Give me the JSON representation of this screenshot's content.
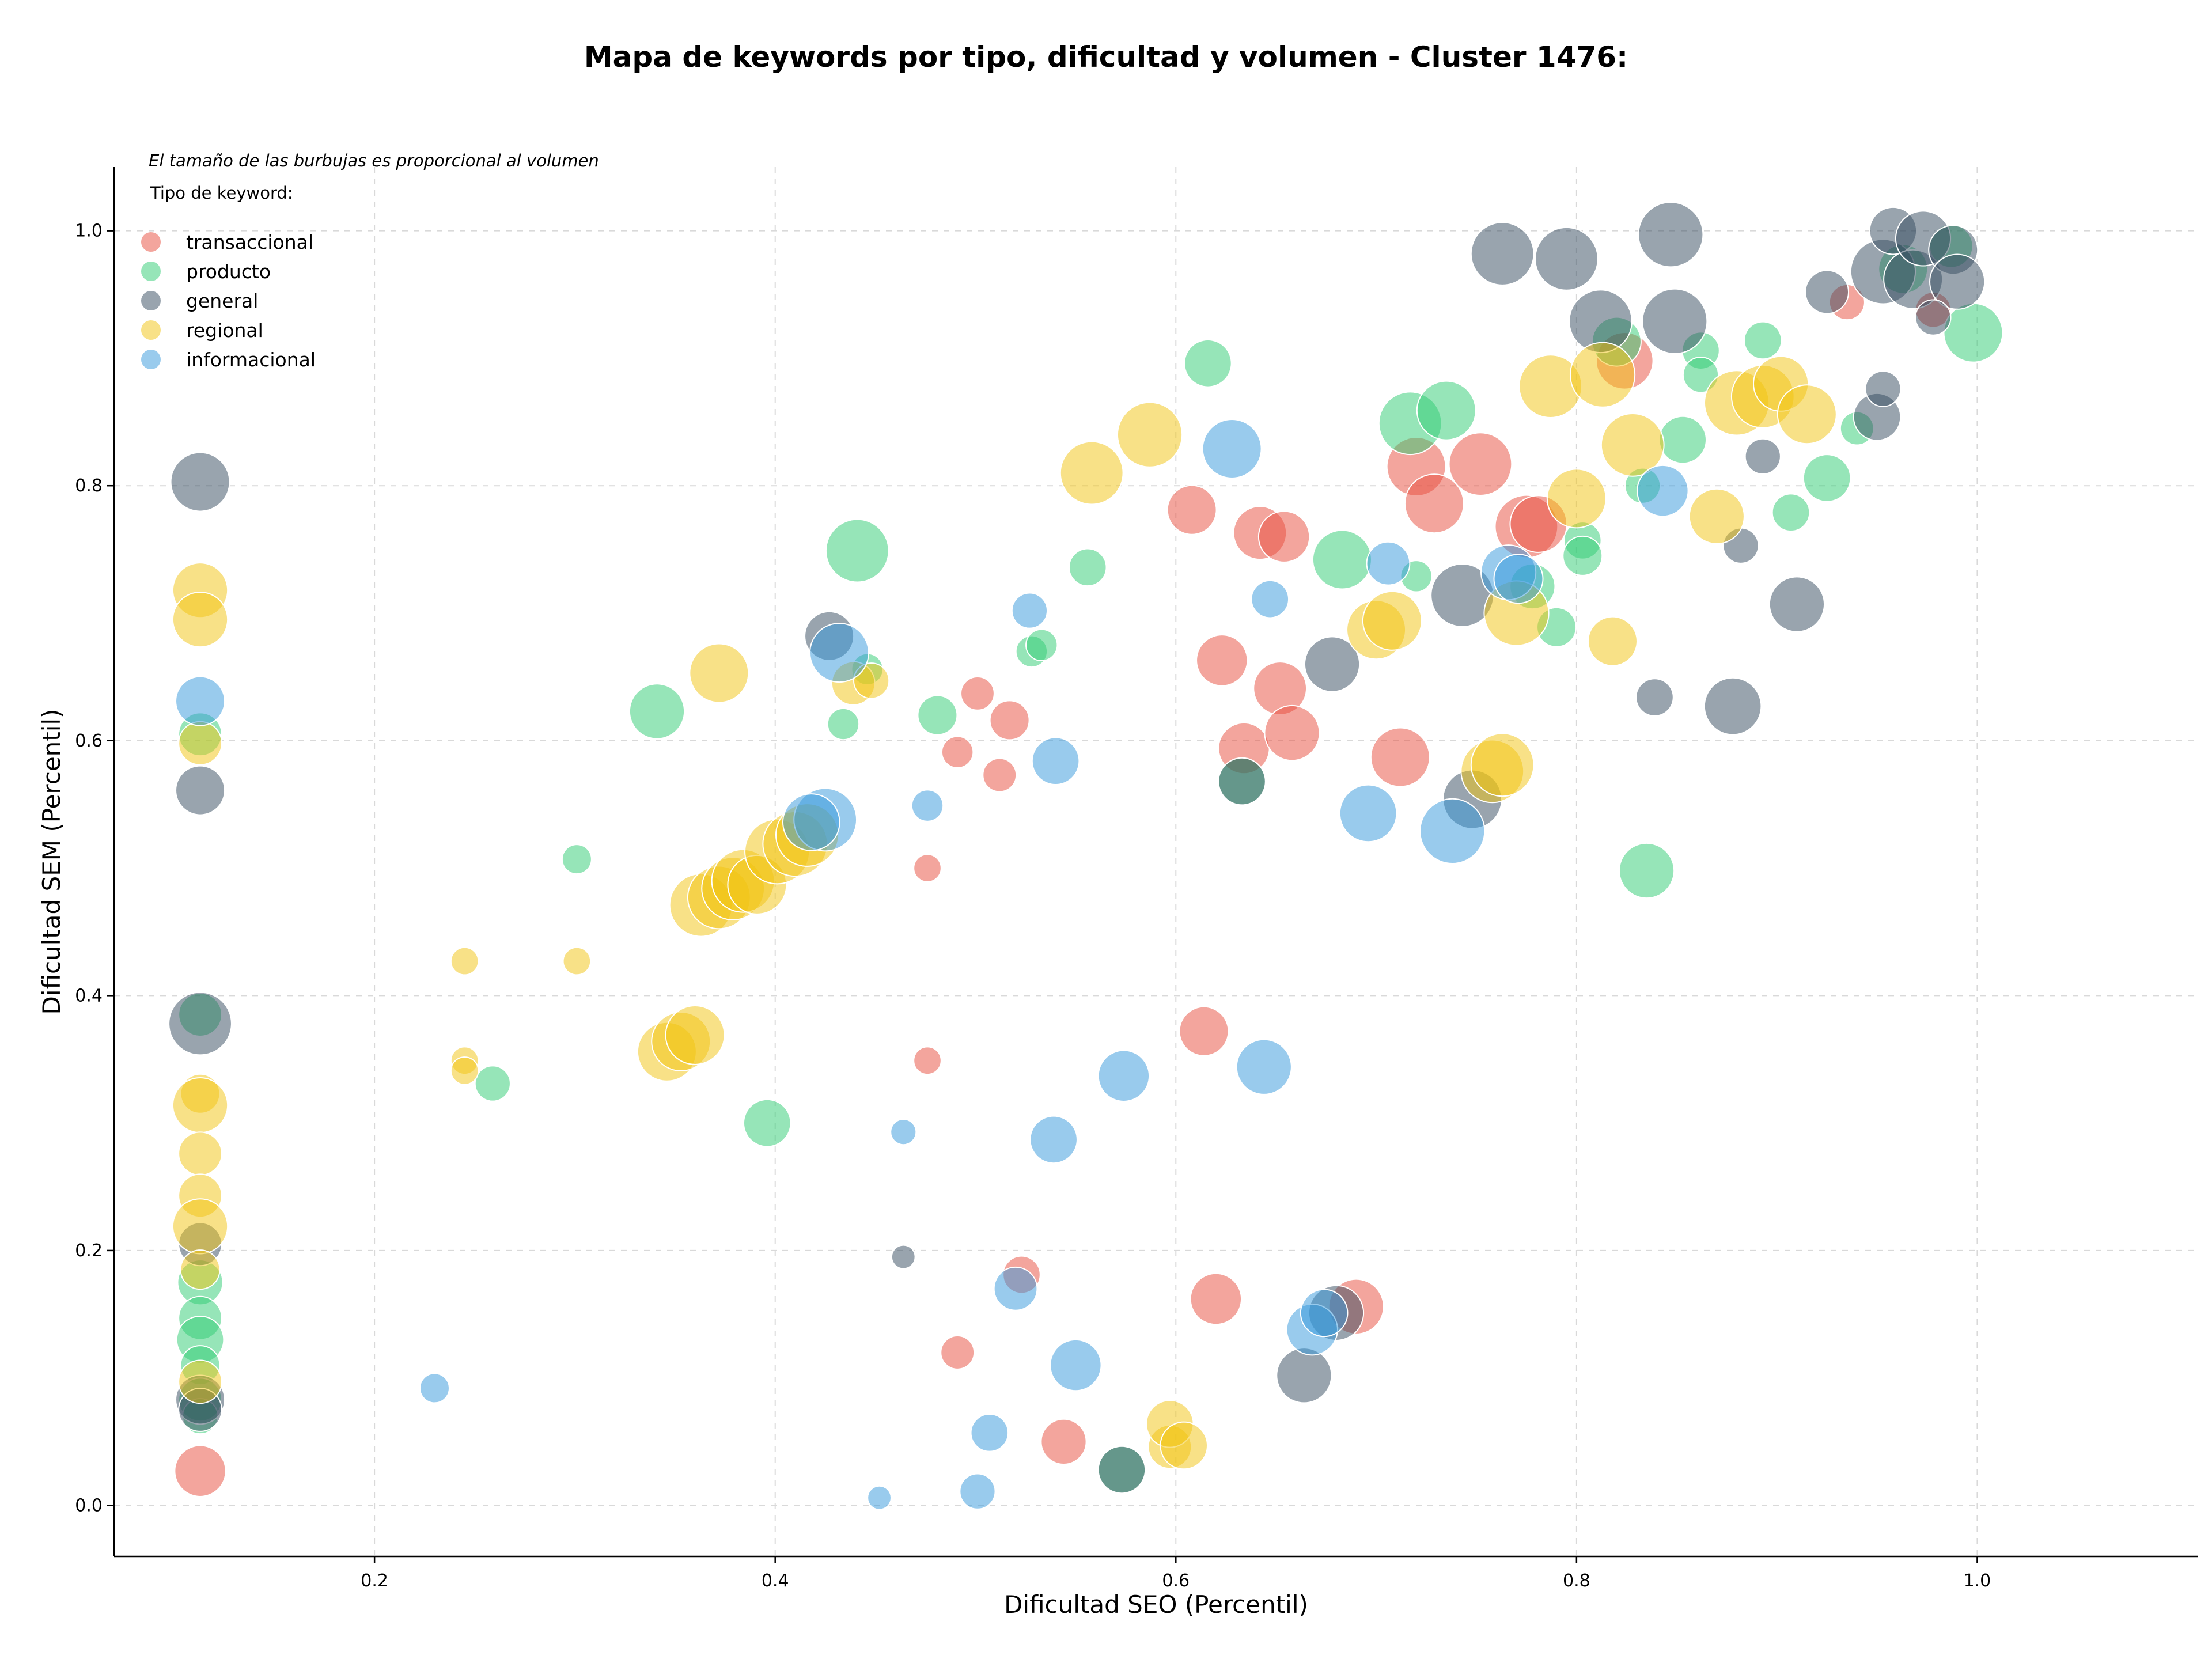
{
  "chart_data": {
    "type": "scatter",
    "title": "Mapa de keywords por tipo, dificultad y volumen - Cluster 1476:",
    "xlabel": "Dificultad SEO (Percentil)",
    "ylabel": "Dificultad SEM (Percentil)",
    "note": "El tamaño de las burbujas es proporcional al volumen",
    "legend_title": "Tipo de keyword:",
    "legend_position": "top-left",
    "grid": true,
    "xlim": [
      0.07,
      1.11
    ],
    "ylim": [
      -0.04,
      1.05
    ],
    "xticks": [
      {
        "value": 0.2,
        "label": "0.2"
      },
      {
        "value": 0.4,
        "label": "0.4"
      },
      {
        "value": 0.6,
        "label": "0.6"
      },
      {
        "value": 0.8,
        "label": "0.8"
      },
      {
        "value": 1.0,
        "label": "1.0"
      }
    ],
    "yticks": [
      {
        "value": 0.0,
        "label": "0.0"
      },
      {
        "value": 0.2,
        "label": "0.2"
      },
      {
        "value": 0.4,
        "label": "0.4"
      },
      {
        "value": 0.6,
        "label": "0.6"
      },
      {
        "value": 0.8,
        "label": "0.8"
      },
      {
        "value": 1.0,
        "label": "1.0"
      }
    ],
    "series": [
      {
        "name": "transaccional",
        "color": "#e74c3c",
        "points": [
          [
            0.113,
            0.027,
            2.6
          ],
          [
            0.476,
            0.5,
            1.4
          ],
          [
            0.476,
            0.349,
            1.4
          ],
          [
            0.491,
            0.591,
            1.6
          ],
          [
            0.501,
            0.637,
            1.7
          ],
          [
            0.512,
            0.573,
            1.7
          ],
          [
            0.517,
            0.616,
            2.0
          ],
          [
            0.523,
            0.181,
            1.9
          ],
          [
            0.491,
            0.12,
            1.7
          ],
          [
            0.544,
            0.05,
            2.3
          ],
          [
            0.608,
            0.781,
            2.5
          ],
          [
            0.614,
            0.372,
            2.5
          ],
          [
            0.62,
            0.162,
            2.6
          ],
          [
            0.623,
            0.663,
            2.6
          ],
          [
            0.634,
            0.594,
            2.6
          ],
          [
            0.642,
            0.763,
            2.7
          ],
          [
            0.652,
            0.641,
            2.7
          ],
          [
            0.654,
            0.76,
            2.6
          ],
          [
            0.658,
            0.606,
            2.8
          ],
          [
            0.69,
            0.156,
            2.8
          ],
          [
            0.712,
            0.587,
            3.0
          ],
          [
            0.72,
            0.815,
            3.0
          ],
          [
            0.729,
            0.786,
            3.0
          ],
          [
            0.752,
            0.817,
            3.2
          ],
          [
            0.775,
            0.768,
            3.2
          ],
          [
            0.781,
            0.77,
            2.9
          ],
          [
            0.824,
            0.898,
            2.9
          ],
          [
            0.935,
            0.944,
            1.8
          ],
          [
            0.978,
            0.938,
            1.8
          ]
        ]
      },
      {
        "name": "producto",
        "color": "#2ecc71",
        "points": [
          [
            0.113,
            0.385,
            2.2
          ],
          [
            0.113,
            0.175,
            2.3
          ],
          [
            0.113,
            0.147,
            2.2
          ],
          [
            0.113,
            0.13,
            2.4
          ],
          [
            0.113,
            0.11,
            2.0
          ],
          [
            0.113,
            0.083,
            2.2
          ],
          [
            0.113,
            0.07,
            1.8
          ],
          [
            0.113,
            0.605,
            2.2
          ],
          [
            0.301,
            0.507,
            1.5
          ],
          [
            0.259,
            0.331,
            1.8
          ],
          [
            0.341,
            0.623,
            2.8
          ],
          [
            0.396,
            0.3,
            2.4
          ],
          [
            0.434,
            0.613,
            1.6
          ],
          [
            0.441,
            0.749,
            3.2
          ],
          [
            0.446,
            0.656,
            1.6
          ],
          [
            0.481,
            0.62,
            2.0
          ],
          [
            0.528,
            0.67,
            1.6
          ],
          [
            0.533,
            0.675,
            1.6
          ],
          [
            0.556,
            0.736,
            1.9
          ],
          [
            0.573,
            0.028,
            2.4
          ],
          [
            0.633,
            0.568,
            2.4
          ],
          [
            0.616,
            0.896,
            2.4
          ],
          [
            0.683,
            0.742,
            3.0
          ],
          [
            0.72,
            0.729,
            1.6
          ],
          [
            0.717,
            0.849,
            3.2
          ],
          [
            0.735,
            0.859,
            3.0
          ],
          [
            0.778,
            0.721,
            2.3
          ],
          [
            0.79,
            0.689,
            2.0
          ],
          [
            0.803,
            0.757,
            1.9
          ],
          [
            0.803,
            0.745,
            2.0
          ],
          [
            0.82,
            0.913,
            2.5
          ],
          [
            0.833,
            0.8,
            1.8
          ],
          [
            0.835,
            0.498,
            2.8
          ],
          [
            0.853,
            0.836,
            2.4
          ],
          [
            0.862,
            0.906,
            1.9
          ],
          [
            0.862,
            0.887,
            1.8
          ],
          [
            0.893,
            0.914,
            1.9
          ],
          [
            0.907,
            0.779,
            1.9
          ],
          [
            0.925,
            0.806,
            2.4
          ],
          [
            0.94,
            0.845,
            1.7
          ],
          [
            0.987,
            0.988,
            2.2
          ],
          [
            0.998,
            0.92,
            3.0
          ],
          [
            0.963,
            0.97,
            2.5
          ]
        ]
      },
      {
        "name": "general",
        "color": "#34495e",
        "points": [
          [
            0.113,
            0.803,
            3.0
          ],
          [
            0.113,
            0.561,
            2.5
          ],
          [
            0.113,
            0.378,
            3.2
          ],
          [
            0.113,
            0.205,
            2.2
          ],
          [
            0.113,
            0.083,
            2.5
          ],
          [
            0.113,
            0.075,
            2.2
          ],
          [
            0.427,
            0.682,
            2.5
          ],
          [
            0.464,
            0.195,
            1.2
          ],
          [
            0.573,
            0.028,
            2.4
          ],
          [
            0.633,
            0.568,
            2.4
          ],
          [
            0.664,
            0.102,
            2.8
          ],
          [
            0.68,
            0.151,
            2.8
          ],
          [
            0.678,
            0.66,
            2.8
          ],
          [
            0.743,
            0.714,
            3.2
          ],
          [
            0.748,
            0.554,
            3.0
          ],
          [
            0.763,
            0.982,
            3.2
          ],
          [
            0.795,
            0.978,
            3.2
          ],
          [
            0.812,
            0.929,
            3.2
          ],
          [
            0.847,
            0.997,
            3.3
          ],
          [
            0.849,
            0.929,
            3.3
          ],
          [
            0.839,
            0.634,
            1.9
          ],
          [
            0.878,
            0.627,
            2.9
          ],
          [
            0.882,
            0.753,
            1.8
          ],
          [
            0.893,
            0.823,
            1.8
          ],
          [
            0.91,
            0.707,
            2.8
          ],
          [
            0.925,
            0.952,
            2.2
          ],
          [
            0.95,
            0.854,
            2.4
          ],
          [
            0.953,
            0.876,
            1.8
          ],
          [
            0.953,
            0.968,
            3.3
          ],
          [
            0.958,
            1.0,
            2.4
          ],
          [
            0.968,
            0.962,
            3.0
          ],
          [
            0.973,
            0.994,
            2.8
          ],
          [
            0.988,
            0.985,
            2.5
          ],
          [
            0.99,
            0.96,
            2.8
          ],
          [
            0.978,
            0.932,
            1.8
          ]
        ]
      },
      {
        "name": "regional",
        "color": "#f1c40f",
        "points": [
          [
            0.113,
            0.718,
            2.8
          ],
          [
            0.113,
            0.695,
            2.8
          ],
          [
            0.113,
            0.598,
            2.2
          ],
          [
            0.113,
            0.323,
            2.0
          ],
          [
            0.113,
            0.314,
            2.8
          ],
          [
            0.113,
            0.276,
            2.2
          ],
          [
            0.113,
            0.243,
            2.2
          ],
          [
            0.113,
            0.219,
            2.8
          ],
          [
            0.113,
            0.185,
            2.0
          ],
          [
            0.113,
            0.097,
            2.2
          ],
          [
            0.245,
            0.427,
            1.4
          ],
          [
            0.245,
            0.349,
            1.4
          ],
          [
            0.245,
            0.341,
            1.4
          ],
          [
            0.301,
            0.427,
            1.4
          ],
          [
            0.346,
            0.356,
            3.0
          ],
          [
            0.353,
            0.364,
            3.0
          ],
          [
            0.36,
            0.369,
            3.0
          ],
          [
            0.363,
            0.471,
            3.2
          ],
          [
            0.372,
            0.477,
            3.2
          ],
          [
            0.379,
            0.484,
            3.2
          ],
          [
            0.384,
            0.49,
            3.2
          ],
          [
            0.391,
            0.487,
            3.0
          ],
          [
            0.401,
            0.513,
            3.3
          ],
          [
            0.41,
            0.519,
            3.3
          ],
          [
            0.416,
            0.526,
            3.2
          ],
          [
            0.372,
            0.653,
            3.0
          ],
          [
            0.439,
            0.645,
            2.2
          ],
          [
            0.448,
            0.647,
            1.8
          ],
          [
            0.558,
            0.81,
            3.2
          ],
          [
            0.587,
            0.84,
            3.3
          ],
          [
            0.597,
            0.046,
            2.2
          ],
          [
            0.597,
            0.064,
            2.4
          ],
          [
            0.604,
            0.047,
            2.4
          ],
          [
            0.7,
            0.687,
            3.0
          ],
          [
            0.708,
            0.694,
            3.0
          ],
          [
            0.758,
            0.576,
            3.2
          ],
          [
            0.763,
            0.581,
            3.2
          ],
          [
            0.77,
            0.7,
            3.3
          ],
          [
            0.787,
            0.878,
            3.2
          ],
          [
            0.8,
            0.79,
            3.0
          ],
          [
            0.813,
            0.887,
            3.3
          ],
          [
            0.818,
            0.678,
            2.5
          ],
          [
            0.828,
            0.832,
            3.2
          ],
          [
            0.87,
            0.776,
            2.8
          ],
          [
            0.88,
            0.865,
            3.3
          ],
          [
            0.893,
            0.87,
            3.2
          ],
          [
            0.902,
            0.88,
            2.8
          ],
          [
            0.915,
            0.856,
            3.0
          ]
        ]
      },
      {
        "name": "informacional",
        "color": "#3498db",
        "points": [
          [
            0.113,
            0.631,
            2.5
          ],
          [
            0.23,
            0.092,
            1.5
          ],
          [
            0.425,
            0.538,
            3.2
          ],
          [
            0.418,
            0.536,
            2.9
          ],
          [
            0.432,
            0.669,
            3.0
          ],
          [
            0.452,
            0.006,
            1.2
          ],
          [
            0.464,
            0.293,
            1.3
          ],
          [
            0.476,
            0.549,
            1.6
          ],
          [
            0.501,
            0.011,
            1.8
          ],
          [
            0.507,
            0.057,
            1.9
          ],
          [
            0.52,
            0.17,
            2.2
          ],
          [
            0.527,
            0.702,
            1.8
          ],
          [
            0.539,
            0.287,
            2.4
          ],
          [
            0.54,
            0.584,
            2.4
          ],
          [
            0.55,
            0.11,
            2.6
          ],
          [
            0.574,
            0.337,
            2.6
          ],
          [
            0.628,
            0.829,
            3.0
          ],
          [
            0.644,
            0.344,
            2.8
          ],
          [
            0.647,
            0.711,
            1.9
          ],
          [
            0.668,
            0.138,
            2.6
          ],
          [
            0.674,
            0.151,
            2.4
          ],
          [
            0.696,
            0.543,
            2.9
          ],
          [
            0.706,
            0.739,
            2.2
          ],
          [
            0.738,
            0.529,
            3.3
          ],
          [
            0.766,
            0.732,
            2.8
          ],
          [
            0.771,
            0.727,
            2.5
          ],
          [
            0.843,
            0.796,
            2.6
          ]
        ]
      }
    ]
  }
}
